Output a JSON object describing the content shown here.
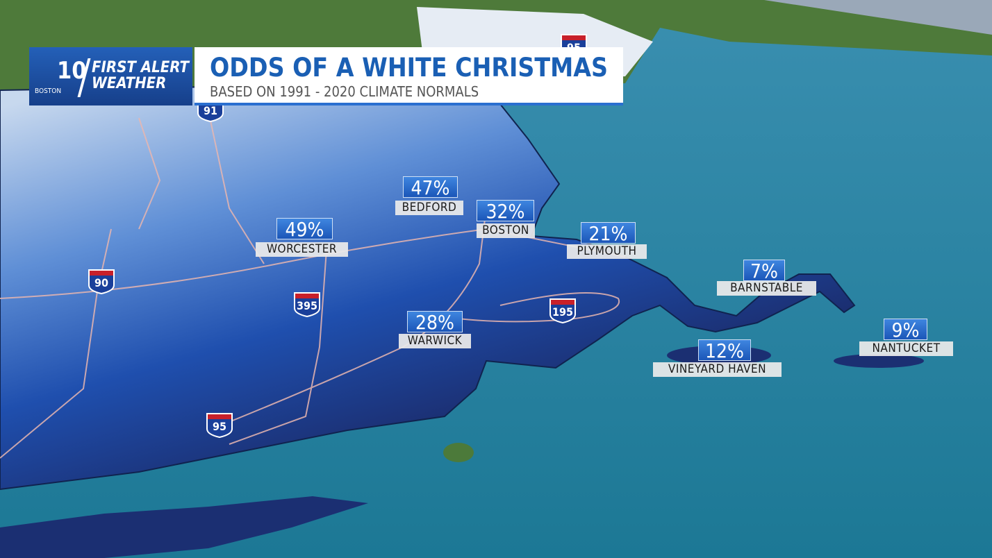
{
  "header": {
    "logo": {
      "channel": "10",
      "city": "BOSTON",
      "brand_line1": "FIRST ALERT",
      "brand_line2": "WEATHER"
    },
    "title": "ODDS OF A WHITE CHRISTMAS",
    "subtitle": "BASED ON 1991 - 2020 CLIMATE NORMALS"
  },
  "locations": [
    {
      "name": "BEDFORD",
      "odds": "47%"
    },
    {
      "name": "BOSTON",
      "odds": "32%"
    },
    {
      "name": "WORCESTER",
      "odds": "49%"
    },
    {
      "name": "PLYMOUTH",
      "odds": "21%"
    },
    {
      "name": "BARNSTABLE",
      "odds": "7%"
    },
    {
      "name": "WARWICK",
      "odds": "28%"
    },
    {
      "name": "VINEYARD HAVEN",
      "odds": "12%"
    },
    {
      "name": "NANTUCKET",
      "odds": "9%"
    }
  ],
  "shields": [
    {
      "label": "90"
    },
    {
      "label": "395"
    },
    {
      "label": "95"
    },
    {
      "label": "195"
    },
    {
      "label": "91"
    },
    {
      "label": "95"
    }
  ]
}
